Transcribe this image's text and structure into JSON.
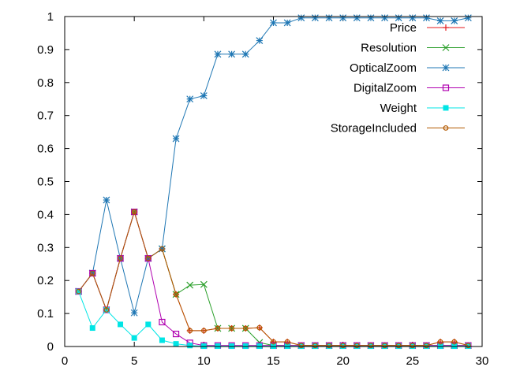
{
  "chart_data": {
    "type": "line",
    "title": "",
    "xlabel": "",
    "ylabel": "",
    "xlim": [
      0,
      30
    ],
    "ylim": [
      0,
      1
    ],
    "x_ticks": [
      "0",
      "5",
      "10",
      "15",
      "20",
      "25",
      "30"
    ],
    "y_ticks": [
      "0",
      "0.1",
      "0.2",
      "0.3",
      "0.4",
      "0.5",
      "0.6",
      "0.7",
      "0.8",
      "0.9",
      "1"
    ],
    "grid": false,
    "legend_position": "top-right",
    "x": [
      1,
      2,
      3,
      4,
      5,
      6,
      7,
      8,
      9,
      10,
      11,
      12,
      13,
      14,
      15,
      16,
      17,
      18,
      19,
      20,
      21,
      22,
      23,
      24,
      25,
      26,
      27,
      28,
      29
    ],
    "series": [
      {
        "name": "Price",
        "color": "#e41a1c",
        "marker": "plus",
        "values": [
          0.167,
          0.222,
          0.111,
          0.267,
          0.408,
          0.267,
          0.296,
          0.158,
          0.048,
          0.048,
          0.055,
          0.055,
          0.055,
          0.057,
          0.014,
          0.014,
          0.003,
          0.003,
          0.003,
          0.003,
          0.003,
          0.003,
          0.003,
          0.003,
          0.003,
          0.003,
          0.014,
          0.014,
          0.003
        ]
      },
      {
        "name": "Resolution",
        "color": "#2ca02c",
        "marker": "cross",
        "values": [
          0.167,
          0.222,
          0.111,
          0.267,
          0.408,
          0.267,
          0.296,
          0.158,
          0.186,
          0.188,
          0.055,
          0.055,
          0.055,
          0.012,
          0.003,
          0.003,
          0.003,
          0.003,
          0.003,
          0.003,
          0.003,
          0.003,
          0.003,
          0.003,
          0.003,
          0.003,
          0.003,
          0.003,
          0.003
        ]
      },
      {
        "name": "OpticalZoom",
        "color": "#1f77b4",
        "marker": "star",
        "values": [
          0.167,
          0.222,
          0.444,
          0.267,
          0.102,
          0.267,
          0.296,
          0.63,
          0.75,
          0.76,
          0.886,
          0.886,
          0.886,
          0.927,
          0.981,
          0.981,
          0.996,
          0.996,
          0.996,
          0.996,
          0.996,
          0.996,
          0.996,
          0.996,
          0.996,
          0.996,
          0.987,
          0.987,
          0.996
        ]
      },
      {
        "name": "DigitalZoom",
        "color": "#b000b0",
        "marker": "square-open",
        "values": [
          0.167,
          0.222,
          0.111,
          0.267,
          0.408,
          0.267,
          0.074,
          0.038,
          0.011,
          0.003,
          0.003,
          0.003,
          0.003,
          0.003,
          0.003,
          0.003,
          0.003,
          0.003,
          0.003,
          0.003,
          0.003,
          0.003,
          0.003,
          0.003,
          0.003,
          0.003,
          0.003,
          0.003,
          0.003
        ]
      },
      {
        "name": "Weight",
        "color": "#00e5e5",
        "marker": "square-filled",
        "values": [
          0.167,
          0.056,
          0.111,
          0.067,
          0.026,
          0.067,
          0.019,
          0.008,
          0.003,
          0.001,
          0.001,
          0.001,
          0.001,
          0.001,
          0.001,
          0.001,
          0.001,
          0.001,
          0.001,
          0.001,
          0.001,
          0.001,
          0.001,
          0.001,
          0.001,
          0.001,
          0.001,
          0.001,
          0.001
        ]
      },
      {
        "name": "StorageIncluded",
        "color": "#b35900",
        "marker": "circle",
        "values": [
          0.167,
          0.222,
          0.111,
          0.267,
          0.408,
          0.267,
          0.296,
          0.158,
          0.048,
          0.048,
          0.055,
          0.055,
          0.055,
          0.057,
          0.014,
          0.014,
          0.003,
          0.003,
          0.003,
          0.003,
          0.003,
          0.003,
          0.003,
          0.003,
          0.003,
          0.003,
          0.014,
          0.014,
          0.003
        ]
      }
    ]
  }
}
